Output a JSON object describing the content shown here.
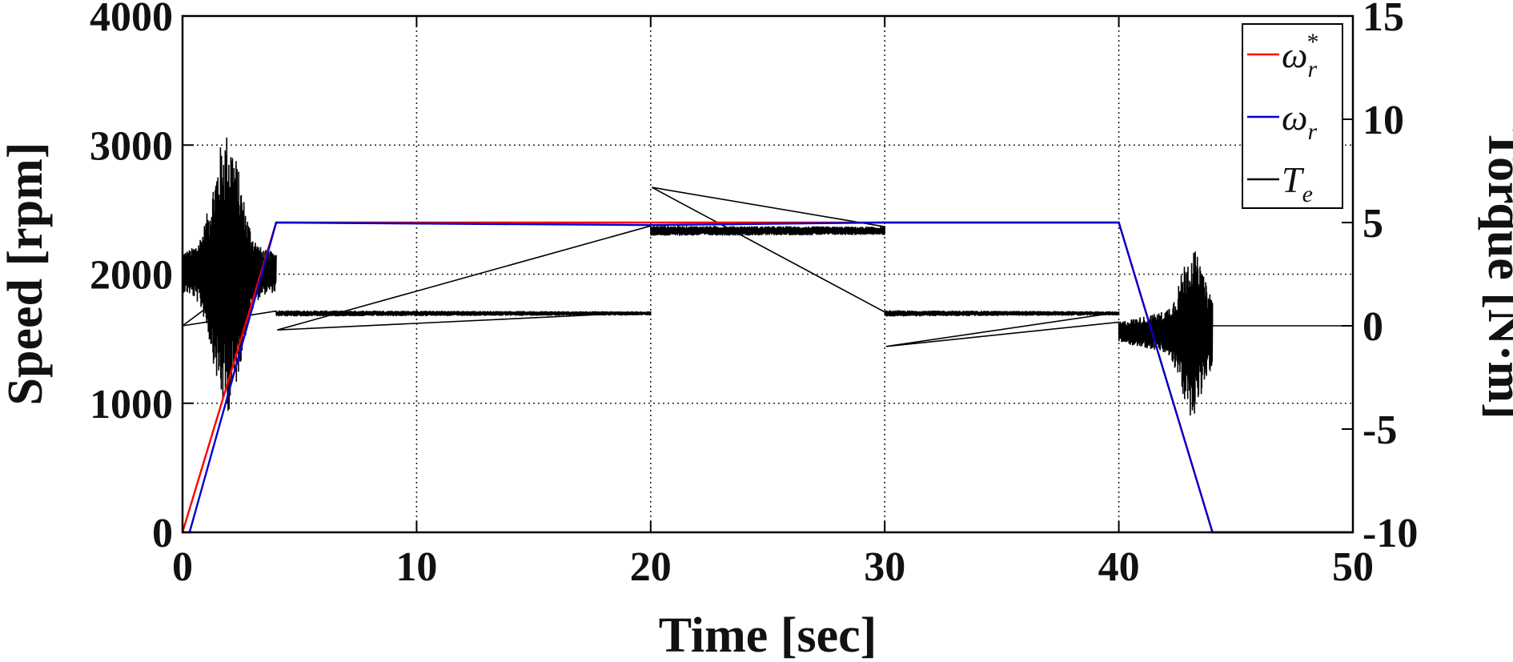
{
  "chart_data": {
    "type": "line",
    "title": "",
    "xlabel": "Time [sec]",
    "ylabel_left": "Speed [rpm]",
    "ylabel_right": "Torque [N·m]",
    "xlim": [
      0,
      50
    ],
    "ylim_left": [
      0,
      4000
    ],
    "ylim_right": [
      -10,
      15
    ],
    "x_ticks": [
      0,
      10,
      20,
      30,
      40,
      50
    ],
    "y_ticks_left": [
      0,
      1000,
      2000,
      3000,
      4000
    ],
    "y_ticks_right": [
      -10,
      -5,
      0,
      5,
      10,
      15
    ],
    "grid": true,
    "legend_position": "top-right",
    "colors": {
      "reference": "#ff0000",
      "speed": "#0000cc",
      "torque": "#000000"
    },
    "series": [
      {
        "name": "ω_r*",
        "legend_symbol": "ω",
        "legend_sub": "r",
        "legend_sup": "*",
        "axis": "left",
        "color": "#ff0000",
        "x": [
          0,
          4,
          20,
          20,
          30,
          30,
          40,
          44,
          50
        ],
        "y": [
          0,
          2400,
          2400,
          2400,
          2400,
          2400,
          2400,
          0,
          0
        ]
      },
      {
        "name": "ω_r",
        "legend_symbol": "ω",
        "legend_sub": "r",
        "legend_sup": "",
        "axis": "left",
        "color": "#0000cc",
        "x": [
          0,
          0.3,
          4,
          20,
          30,
          40,
          44,
          50
        ],
        "y": [
          0,
          0,
          2400,
          2380,
          2400,
          2400,
          0,
          0
        ]
      },
      {
        "name": "T_e",
        "legend_symbol": "T",
        "legend_sub": "e",
        "legend_sup": "",
        "axis": "right",
        "color": "#000000",
        "segments": [
          {
            "x0": 0,
            "x1": 4,
            "base": 2.6,
            "env0": 1.0,
            "env1": 1.0,
            "burst_center": 1.9,
            "burst_amp": 5.8,
            "burst_width": 0.8
          },
          {
            "x0": 4,
            "x1": 20,
            "base": 0.6,
            "env0": 0.15,
            "env1": 0.1
          },
          {
            "x0": 20,
            "x1": 30,
            "base": 4.6,
            "env0": 0.25,
            "env1": 0.2
          },
          {
            "x0": 30,
            "x1": 40,
            "base": 0.6,
            "env0": 0.15,
            "env1": 0.1
          },
          {
            "x0": 40,
            "x1": 44,
            "base": -0.3,
            "env0": 0.5,
            "env1": 1.5,
            "burst_center": 43.1,
            "burst_amp": 2.8,
            "burst_width": 0.6
          },
          {
            "x0": 44,
            "x1": 50,
            "base": 0.0,
            "env0": 0.0,
            "env1": 0.0
          }
        ],
        "spikes": [
          {
            "x": 0,
            "y": 0.0
          },
          {
            "x": 4.05,
            "y": -0.2
          },
          {
            "x": 20.05,
            "y": 6.7
          },
          {
            "x": 30.05,
            "y": -1.0
          }
        ]
      }
    ]
  }
}
